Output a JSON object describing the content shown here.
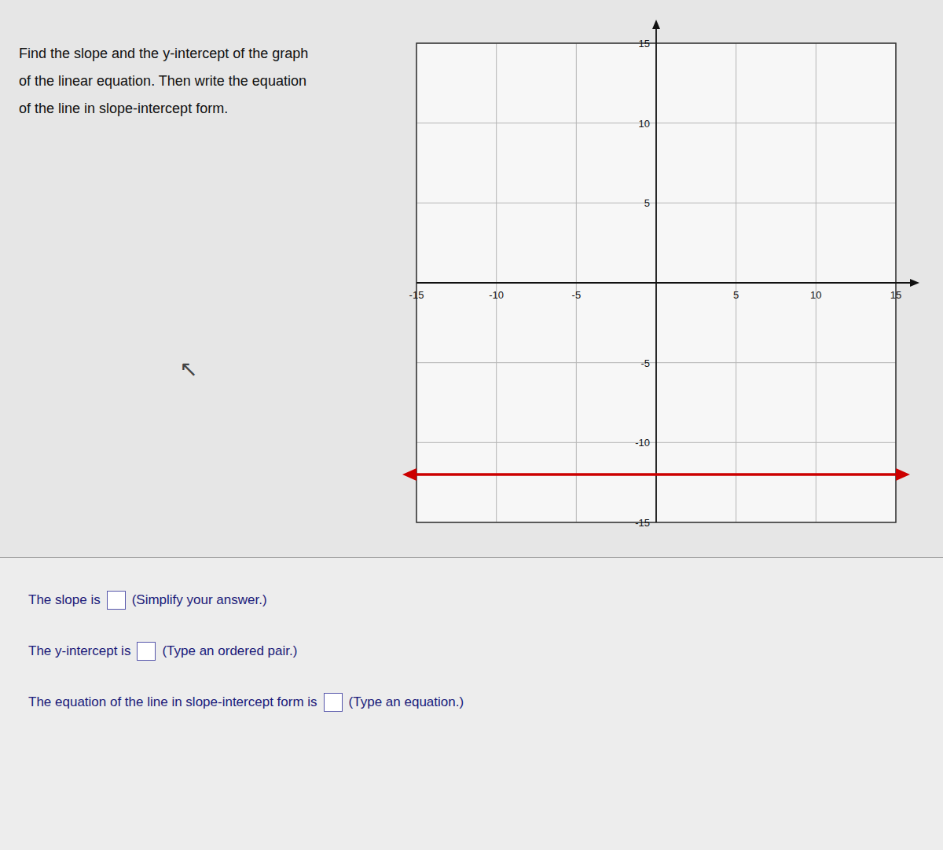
{
  "chart_data": {
    "type": "line",
    "title": [
      "Find the slope and the y-intercept of the graph",
      "of the linear equation. Then write the equation",
      "of the line in slope-intercept form."
    ],
    "x": [
      -15,
      15
    ],
    "values": [
      -12,
      -12
    ],
    "color": "#cc0000",
    "xlim": [
      -15,
      15
    ],
    "ylim": [
      -15,
      15
    ],
    "xticks": [
      -15,
      -10,
      -5,
      5,
      10,
      15
    ],
    "yticks": [
      -15,
      -10,
      -5,
      5,
      10,
      15
    ],
    "grid": true,
    "annotations": [
      "↖",
      "The slope is",
      "(Simplify your answer.)",
      "The y-intercept is",
      "(Type an ordered pair.)",
      "The equation of the line in slope-intercept form is",
      "(Type an equation.)"
    ]
  }
}
